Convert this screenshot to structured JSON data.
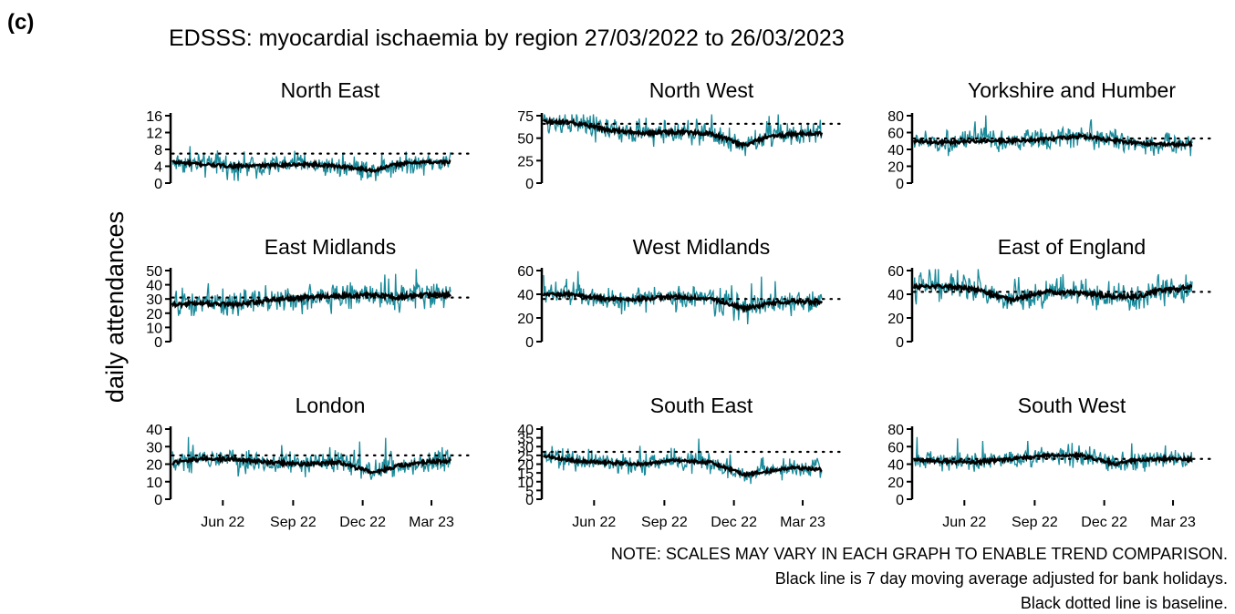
{
  "panel_label": "(c)",
  "title": "EDSSS: myocardial ischaemia by region 27/03/2022 to 26/03/2023",
  "ylabel": "daily attendances",
  "notes": [
    "NOTE: SCALES MAY VARY IN EACH GRAPH TO ENABLE TREND COMPARISON.",
    "Black line is 7 day moving average adjusted for bank holidays.",
    "Black dotted line is baseline."
  ],
  "colors": {
    "daily": "#1a8a9a",
    "average": "#000000",
    "baseline": "#000000"
  },
  "chart_data": {
    "type": "line",
    "x_start": "2022-03-27",
    "x_end": "2023-03-26",
    "x_ticks": [
      "Jun 22",
      "Sep 22",
      "Dec 22",
      "Mar 23"
    ],
    "x_tick_dates": [
      "2022-06-01",
      "2022-09-01",
      "2022-12-01",
      "2023-03-01"
    ],
    "grid": false,
    "legend": "none",
    "series_names": [
      "daily attendances",
      "7 day moving average adjusted for bank holidays",
      "baseline"
    ],
    "regions": [
      {
        "name": "North East",
        "ylim": [
          0,
          16
        ],
        "yticks": [
          0,
          4,
          8,
          12,
          16
        ],
        "baseline": 7,
        "avg_dates": [
          "2022-03-27",
          "2022-05-01",
          "2022-06-15",
          "2022-08-01",
          "2022-09-15",
          "2022-11-01",
          "2022-12-15",
          "2023-01-15",
          "2023-02-15",
          "2023-03-26"
        ],
        "avg_values": [
          5,
          4.5,
          4,
          4.2,
          4.5,
          4,
          3,
          4.5,
          5,
          5
        ],
        "noise": 2.2
      },
      {
        "name": "North West",
        "ylim": [
          0,
          90
        ],
        "yticks": [
          0,
          25,
          50,
          75
        ],
        "baseline": 66,
        "avg_dates": [
          "2022-03-27",
          "2022-05-01",
          "2022-06-15",
          "2022-08-01",
          "2022-09-15",
          "2022-11-01",
          "2022-12-15",
          "2023-01-15",
          "2023-02-15",
          "2023-03-26"
        ],
        "avg_values": [
          68,
          68,
          60,
          55,
          57,
          55,
          42,
          52,
          54,
          56
        ],
        "noise": 12
      },
      {
        "name": "Yorkshire and Humber",
        "ylim": [
          0,
          80
        ],
        "yticks": [
          0,
          20,
          40,
          60,
          80
        ],
        "baseline": 53,
        "avg_dates": [
          "2022-03-27",
          "2022-05-01",
          "2022-06-15",
          "2022-08-01",
          "2022-09-15",
          "2022-11-01",
          "2022-12-15",
          "2023-01-15",
          "2023-02-15",
          "2023-03-26"
        ],
        "avg_values": [
          50,
          48,
          50,
          50,
          52,
          56,
          50,
          47,
          46,
          46
        ],
        "noise": 11
      },
      {
        "name": "East Midlands",
        "ylim": [
          0,
          50
        ],
        "yticks": [
          0,
          10,
          20,
          30,
          40,
          50
        ],
        "baseline": 31,
        "avg_dates": [
          "2022-03-27",
          "2022-05-01",
          "2022-06-15",
          "2022-08-01",
          "2022-09-15",
          "2022-11-01",
          "2022-12-15",
          "2023-01-15",
          "2023-02-15",
          "2023-03-26"
        ],
        "avg_values": [
          26,
          27,
          26,
          29,
          31,
          32,
          33,
          31,
          33,
          33
        ],
        "noise": 8
      },
      {
        "name": "West Midlands",
        "ylim": [
          0,
          65
        ],
        "yticks": [
          0,
          20,
          40,
          60
        ],
        "baseline": 36,
        "avg_dates": [
          "2022-03-27",
          "2022-05-01",
          "2022-06-15",
          "2022-08-01",
          "2022-09-15",
          "2022-11-01",
          "2022-12-15",
          "2023-01-15",
          "2023-02-15",
          "2023-03-26"
        ],
        "avg_values": [
          40,
          40,
          36,
          36,
          38,
          36,
          28,
          32,
          34,
          33
        ],
        "noise": 9
      },
      {
        "name": "East of England",
        "ylim": [
          0,
          75
        ],
        "yticks": [
          0,
          20,
          40,
          60
        ],
        "baseline": 42,
        "avg_dates": [
          "2022-03-27",
          "2022-05-01",
          "2022-06-15",
          "2022-08-01",
          "2022-09-15",
          "2022-11-01",
          "2022-12-15",
          "2023-01-15",
          "2023-02-15",
          "2023-03-26"
        ],
        "avg_values": [
          46,
          47,
          44,
          35,
          42,
          41,
          38,
          38,
          44,
          46
        ],
        "noise": 10
      },
      {
        "name": "London",
        "ylim": [
          0,
          45
        ],
        "yticks": [
          0,
          10,
          20,
          30,
          40
        ],
        "baseline": 25,
        "avg_dates": [
          "2022-03-27",
          "2022-05-01",
          "2022-06-15",
          "2022-08-01",
          "2022-09-15",
          "2022-11-01",
          "2022-12-15",
          "2023-01-15",
          "2023-02-15",
          "2023-03-26"
        ],
        "avg_values": [
          21,
          23,
          23,
          21,
          20,
          21,
          15,
          19,
          21,
          22
        ],
        "noise": 6
      },
      {
        "name": "South East",
        "ylim": [
          0,
          42
        ],
        "yticks": [
          0,
          5,
          10,
          15,
          20,
          25,
          30,
          35,
          40
        ],
        "baseline": 27,
        "avg_dates": [
          "2022-03-27",
          "2022-05-01",
          "2022-06-15",
          "2022-08-01",
          "2022-09-15",
          "2022-11-01",
          "2022-12-15",
          "2023-01-15",
          "2023-02-15",
          "2023-03-26"
        ],
        "avg_values": [
          25,
          22,
          21,
          20,
          22,
          21,
          14,
          16,
          18,
          17
        ],
        "noise": 5
      },
      {
        "name": "South West",
        "ylim": [
          0,
          85
        ],
        "yticks": [
          0,
          20,
          40,
          60,
          80
        ],
        "baseline": 46,
        "avg_dates": [
          "2022-03-27",
          "2022-05-01",
          "2022-06-15",
          "2022-08-01",
          "2022-09-15",
          "2022-11-01",
          "2022-12-15",
          "2023-01-15",
          "2023-02-15",
          "2023-03-26"
        ],
        "avg_values": [
          45,
          43,
          42,
          46,
          50,
          50,
          40,
          45,
          46,
          45
        ],
        "noise": 10
      }
    ]
  }
}
